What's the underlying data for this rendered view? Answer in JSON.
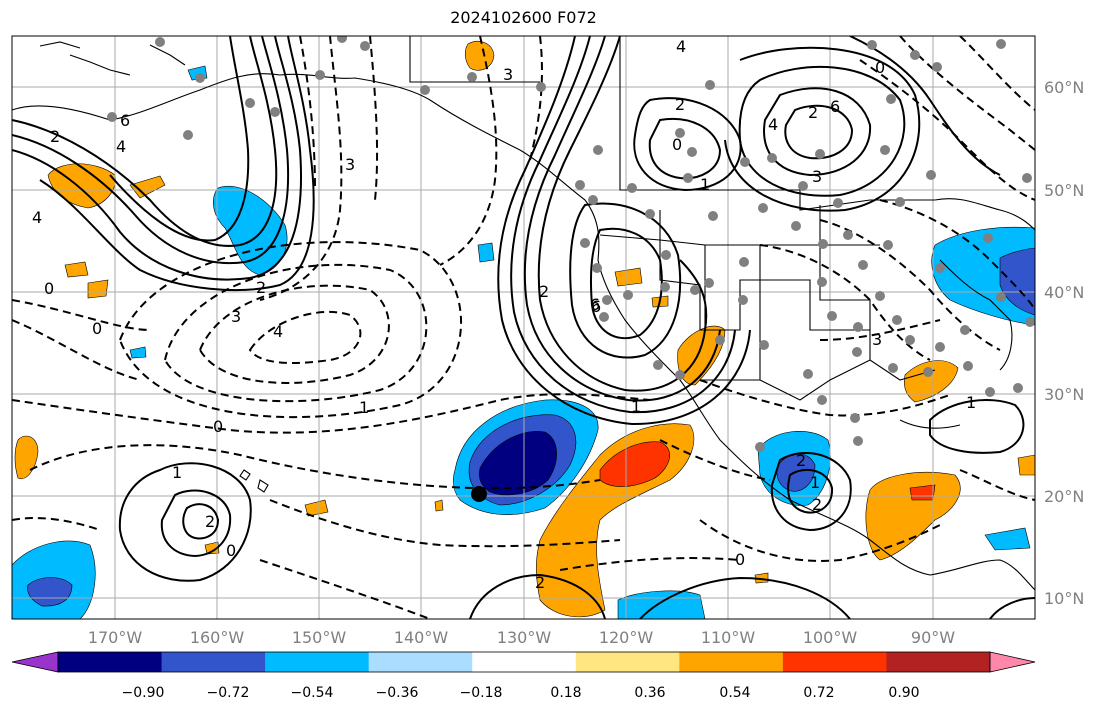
{
  "title": "2024102600 F072",
  "lat_labels": [
    "60°N",
    "50°N",
    "40°N",
    "30°N",
    "20°N",
    "10°N"
  ],
  "lon_labels": [
    "170°W",
    "160°W",
    "150°W",
    "140°W",
    "130°W",
    "120°W",
    "110°W",
    "100°W",
    "90°W"
  ],
  "colorbar": {
    "ticks": [
      "−0.90",
      "−0.72",
      "−0.54",
      "−0.36",
      "−0.18",
      "0.18",
      "0.36",
      "0.54",
      "0.72",
      "0.90"
    ],
    "colors": [
      "#9933cc",
      "#000080",
      "#3355cc",
      "#00bbff",
      "#aaddff",
      "#ffffff",
      "#ffe680",
      "#ffa500",
      "#ff3300",
      "#b22222",
      "#ff88aa"
    ]
  },
  "contour_labels": [
    "4",
    "6",
    "4",
    "2",
    "0",
    "2",
    "3",
    "6",
    "4",
    "2",
    "0",
    "1",
    "3",
    "4",
    "6",
    "2",
    "3",
    "0",
    "3",
    "2",
    "4",
    "0",
    "1",
    "0",
    "1",
    "2",
    "0",
    "6",
    "1",
    "2",
    "1",
    "0",
    "2",
    "1",
    "2",
    "3"
  ]
}
